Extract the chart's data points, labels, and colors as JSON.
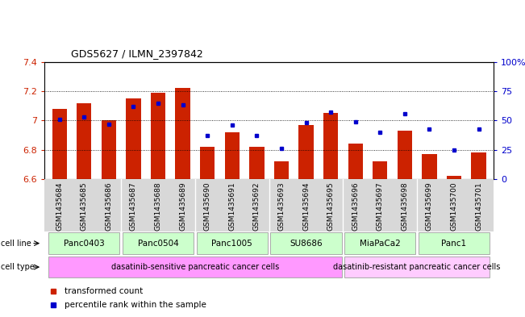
{
  "title": "GDS5627 / ILMN_2397842",
  "samples": [
    "GSM1435684",
    "GSM1435685",
    "GSM1435686",
    "GSM1435687",
    "GSM1435688",
    "GSM1435689",
    "GSM1435690",
    "GSM1435691",
    "GSM1435692",
    "GSM1435693",
    "GSM1435694",
    "GSM1435695",
    "GSM1435696",
    "GSM1435697",
    "GSM1435698",
    "GSM1435699",
    "GSM1435700",
    "GSM1435701"
  ],
  "bar_values": [
    7.08,
    7.12,
    7.0,
    7.15,
    7.19,
    7.22,
    6.82,
    6.92,
    6.82,
    6.72,
    6.97,
    7.05,
    6.84,
    6.72,
    6.93,
    6.77,
    6.62,
    6.78
  ],
  "blue_values": [
    51,
    53,
    47,
    62,
    65,
    63,
    37,
    46,
    37,
    26,
    48,
    57,
    49,
    40,
    56,
    43,
    25,
    43
  ],
  "ylim": [
    6.6,
    7.4
  ],
  "yticks": [
    6.6,
    6.8,
    7.0,
    7.2,
    7.4
  ],
  "ytick_labels_left": [
    "6.6",
    "6.8",
    "7",
    "7.2",
    "7.4"
  ],
  "ytick_labels_right": [
    "0",
    "25",
    "50",
    "75",
    "100%"
  ],
  "right_ytick_vals": [
    0,
    25,
    50,
    75,
    100
  ],
  "cell_lines": [
    {
      "label": "Panc0403",
      "start": 0,
      "end": 2
    },
    {
      "label": "Panc0504",
      "start": 3,
      "end": 5
    },
    {
      "label": "Panc1005",
      "start": 6,
      "end": 8
    },
    {
      "label": "SU8686",
      "start": 9,
      "end": 11
    },
    {
      "label": "MiaPaCa2",
      "start": 12,
      "end": 14
    },
    {
      "label": "Panc1",
      "start": 15,
      "end": 17
    }
  ],
  "cell_types": [
    {
      "label": "dasatinib-sensitive pancreatic cancer cells",
      "start": 0,
      "end": 11
    },
    {
      "label": "dasatinib-resistant pancreatic cancer cells",
      "start": 12,
      "end": 17
    }
  ],
  "cell_line_color": "#ccffcc",
  "cell_type_color_sensitive": "#ff99ff",
  "cell_type_color_resistant": "#ffccff",
  "bar_color": "#cc2200",
  "blue_color": "#0000cc",
  "axis_left_color": "#cc2200",
  "axis_right_color": "#0000cc",
  "grid_color": "black",
  "legend_bar_label": "transformed count",
  "legend_blue_label": "percentile rank within the sample"
}
